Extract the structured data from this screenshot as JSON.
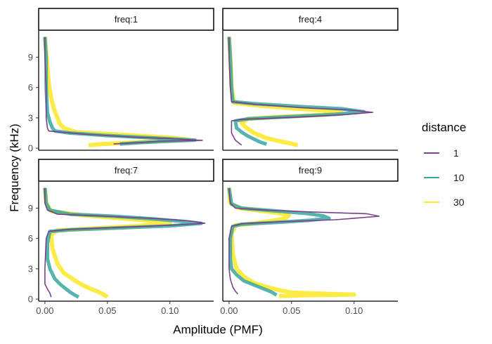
{
  "chart_data": {
    "type": "line",
    "facet_variable": "freq",
    "panels": [
      {
        "label": "freq:1",
        "peak_khz": 0.75
      },
      {
        "label": "freq:4",
        "peak_khz": 3.55
      },
      {
        "label": "freq:7",
        "peak_khz": 7.5
      },
      {
        "label": "freq:9",
        "peak_khz": 8.2
      }
    ],
    "xlabel": "Amplitude (PMF)",
    "ylabel": "Frequency (kHz)",
    "xlim": [
      -0.005,
      0.135
    ],
    "ylim": [
      -0.2,
      11.6
    ],
    "x_ticks": [
      0.0,
      0.05,
      0.1
    ],
    "x_tick_labels": [
      "0.00",
      "0.05",
      "0.10"
    ],
    "y_ticks": [
      0,
      3,
      6,
      9
    ],
    "y_tick_labels": [
      "0",
      "3",
      "6",
      "9"
    ],
    "legend": {
      "title": "distance",
      "position": "right",
      "entries": [
        {
          "name": "1",
          "color": "#7b3f8c"
        },
        {
          "name": "10",
          "color": "#3aa6a0"
        },
        {
          "name": "30",
          "color": "#fde725"
        }
      ]
    },
    "series": [
      {
        "name": "1",
        "color": "#7b3f8c",
        "panels": [
          [
            [
              0.0,
              11.0
            ],
            [
              0.0,
              9.0
            ],
            [
              0.001,
              6.0
            ],
            [
              0.001,
              3.0
            ],
            [
              0.002,
              2.0
            ],
            [
              0.003,
              1.7
            ],
            [
              0.03,
              1.4
            ],
            [
              0.07,
              1.1
            ],
            [
              0.1,
              0.95
            ],
            [
              0.126,
              0.78
            ],
            [
              0.095,
              0.7
            ],
            [
              0.075,
              0.55
            ],
            [
              0.055,
              0.42
            ]
          ],
          [
            [
              0.0,
              11.0
            ],
            [
              0.0,
              9.0
            ],
            [
              0.001,
              6.0
            ],
            [
              0.002,
              4.6
            ],
            [
              0.02,
              4.35
            ],
            [
              0.06,
              4.0
            ],
            [
              0.095,
              3.8
            ],
            [
              0.115,
              3.55
            ],
            [
              0.09,
              3.3
            ],
            [
              0.05,
              3.05
            ],
            [
              0.01,
              2.85
            ],
            [
              0.002,
              2.7
            ],
            [
              0.002,
              1.5
            ],
            [
              0.005,
              0.8
            ],
            [
              0.008,
              0.5
            ],
            [
              0.01,
              0.3
            ]
          ],
          [
            [
              0.0,
              11.0
            ],
            [
              0.0,
              9.5
            ],
            [
              0.002,
              8.8
            ],
            [
              0.01,
              8.4
            ],
            [
              0.05,
              8.2
            ],
            [
              0.085,
              8.0
            ],
            [
              0.115,
              7.75
            ],
            [
              0.128,
              7.5
            ],
            [
              0.1,
              7.3
            ],
            [
              0.06,
              7.1
            ],
            [
              0.02,
              6.9
            ],
            [
              0.003,
              6.7
            ],
            [
              0.001,
              6.0
            ],
            [
              0.0,
              3.0
            ],
            [
              0.0,
              1.5
            ],
            [
              0.002,
              1.0
            ],
            [
              0.004,
              0.6
            ],
            [
              0.005,
              0.2
            ]
          ],
          [
            [
              0.0,
              11.0
            ],
            [
              0.001,
              9.5
            ],
            [
              0.005,
              9.0
            ],
            [
              0.03,
              8.8
            ],
            [
              0.07,
              8.6
            ],
            [
              0.11,
              8.45
            ],
            [
              0.12,
              8.2
            ],
            [
              0.1,
              8.0
            ],
            [
              0.085,
              7.85
            ],
            [
              0.04,
              7.65
            ],
            [
              0.01,
              7.45
            ],
            [
              0.002,
              7.2
            ],
            [
              0.0,
              6.0
            ],
            [
              0.0,
              3.0
            ],
            [
              0.001,
              2.0
            ],
            [
              0.003,
              1.2
            ],
            [
              0.005,
              0.8
            ],
            [
              0.007,
              0.5
            ]
          ]
        ]
      },
      {
        "name": "10",
        "color": "#3aa6a0",
        "panels": [
          [
            [
              0.0,
              11.0
            ],
            [
              0.001,
              9.0
            ],
            [
              0.001,
              6.0
            ],
            [
              0.002,
              3.5
            ],
            [
              0.004,
              2.6
            ],
            [
              0.006,
              2.0
            ],
            [
              0.008,
              1.7
            ],
            [
              0.02,
              1.5
            ],
            [
              0.05,
              1.25
            ],
            [
              0.09,
              1.0
            ],
            [
              0.12,
              0.8
            ],
            [
              0.098,
              0.68
            ],
            [
              0.075,
              0.55
            ],
            [
              0.06,
              0.42
            ]
          ],
          [
            [
              0.0,
              11.0
            ],
            [
              0.001,
              9.0
            ],
            [
              0.002,
              6.0
            ],
            [
              0.003,
              4.6
            ],
            [
              0.02,
              4.4
            ],
            [
              0.06,
              4.1
            ],
            [
              0.09,
              3.9
            ],
            [
              0.108,
              3.6
            ],
            [
              0.085,
              3.35
            ],
            [
              0.045,
              3.1
            ],
            [
              0.015,
              2.9
            ],
            [
              0.005,
              2.7
            ],
            [
              0.006,
              2.0
            ],
            [
              0.01,
              1.6
            ],
            [
              0.015,
              1.2
            ],
            [
              0.02,
              0.9
            ],
            [
              0.025,
              0.6
            ],
            [
              0.03,
              0.4
            ]
          ],
          [
            [
              0.0,
              11.0
            ],
            [
              0.001,
              9.5
            ],
            [
              0.004,
              8.8
            ],
            [
              0.02,
              8.4
            ],
            [
              0.055,
              8.2
            ],
            [
              0.085,
              7.95
            ],
            [
              0.11,
              7.7
            ],
            [
              0.125,
              7.5
            ],
            [
              0.1,
              7.25
            ],
            [
              0.06,
              7.05
            ],
            [
              0.02,
              6.85
            ],
            [
              0.004,
              6.7
            ],
            [
              0.002,
              5.5
            ],
            [
              0.002,
              4.0
            ],
            [
              0.004,
              3.0
            ],
            [
              0.008,
              2.0
            ],
            [
              0.012,
              1.5
            ],
            [
              0.016,
              1.1
            ],
            [
              0.02,
              0.7
            ],
            [
              0.024,
              0.4
            ],
            [
              0.027,
              0.2
            ]
          ],
          [
            [
              0.0,
              11.0
            ],
            [
              0.002,
              9.4
            ],
            [
              0.01,
              9.0
            ],
            [
              0.035,
              8.75
            ],
            [
              0.06,
              8.5
            ],
            [
              0.075,
              8.25
            ],
            [
              0.08,
              8.0
            ],
            [
              0.065,
              7.8
            ],
            [
              0.04,
              7.6
            ],
            [
              0.01,
              7.4
            ],
            [
              0.003,
              7.2
            ],
            [
              0.001,
              6.0
            ],
            [
              0.001,
              4.0
            ],
            [
              0.002,
              3.0
            ],
            [
              0.006,
              2.4
            ],
            [
              0.012,
              1.8
            ],
            [
              0.02,
              1.4
            ],
            [
              0.028,
              1.0
            ],
            [
              0.034,
              0.7
            ],
            [
              0.038,
              0.4
            ]
          ]
        ]
      },
      {
        "name": "30",
        "color": "#fde725",
        "panels": [
          [
            [
              0.0,
              11.0
            ],
            [
              0.001,
              9.5
            ],
            [
              0.002,
              8.0
            ],
            [
              0.003,
              6.5
            ],
            [
              0.005,
              5.0
            ],
            [
              0.007,
              4.0
            ],
            [
              0.01,
              3.0
            ],
            [
              0.012,
              2.4
            ],
            [
              0.015,
              2.0
            ],
            [
              0.025,
              1.6
            ],
            [
              0.06,
              1.35
            ],
            [
              0.1,
              1.05
            ],
            [
              0.115,
              0.85
            ],
            [
              0.095,
              0.72
            ],
            [
              0.075,
              0.6
            ],
            [
              0.06,
              0.5
            ],
            [
              0.045,
              0.4
            ],
            [
              0.035,
              0.3
            ]
          ],
          [
            [
              0.0,
              11.0
            ],
            [
              0.001,
              9.0
            ],
            [
              0.002,
              6.0
            ],
            [
              0.004,
              4.5
            ],
            [
              0.02,
              4.25
            ],
            [
              0.05,
              3.95
            ],
            [
              0.08,
              3.7
            ],
            [
              0.09,
              3.5
            ],
            [
              0.075,
              3.3
            ],
            [
              0.04,
              3.1
            ],
            [
              0.015,
              2.9
            ],
            [
              0.01,
              2.5
            ],
            [
              0.014,
              2.0
            ],
            [
              0.02,
              1.5
            ],
            [
              0.03,
              1.0
            ],
            [
              0.04,
              0.7
            ],
            [
              0.05,
              0.45
            ],
            [
              0.055,
              0.3
            ]
          ],
          [
            [
              0.0,
              11.0
            ],
            [
              0.001,
              9.5
            ],
            [
              0.005,
              8.7
            ],
            [
              0.03,
              8.3
            ],
            [
              0.06,
              8.0
            ],
            [
              0.09,
              7.7
            ],
            [
              0.1,
              7.5
            ],
            [
              0.075,
              7.25
            ],
            [
              0.04,
              7.0
            ],
            [
              0.01,
              6.8
            ],
            [
              0.005,
              6.4
            ],
            [
              0.006,
              5.0
            ],
            [
              0.01,
              3.5
            ],
            [
              0.015,
              2.6
            ],
            [
              0.022,
              2.0
            ],
            [
              0.03,
              1.4
            ],
            [
              0.037,
              1.0
            ],
            [
              0.043,
              0.7
            ],
            [
              0.048,
              0.4
            ],
            [
              0.05,
              0.2
            ]
          ],
          [
            [
              0.0,
              11.0
            ],
            [
              0.001,
              9.5
            ],
            [
              0.008,
              9.0
            ],
            [
              0.025,
              8.75
            ],
            [
              0.04,
              8.5
            ],
            [
              0.048,
              8.3
            ],
            [
              0.045,
              8.0
            ],
            [
              0.035,
              7.75
            ],
            [
              0.02,
              7.5
            ],
            [
              0.005,
              7.3
            ],
            [
              0.002,
              6.5
            ],
            [
              0.003,
              4.5
            ],
            [
              0.006,
              3.0
            ],
            [
              0.012,
              2.2
            ],
            [
              0.02,
              1.6
            ],
            [
              0.03,
              1.2
            ],
            [
              0.04,
              0.9
            ],
            [
              0.05,
              0.65
            ],
            [
              0.08,
              0.52
            ],
            [
              0.1,
              0.45
            ],
            [
              0.06,
              0.38
            ],
            [
              0.04,
              0.3
            ]
          ]
        ]
      }
    ]
  }
}
